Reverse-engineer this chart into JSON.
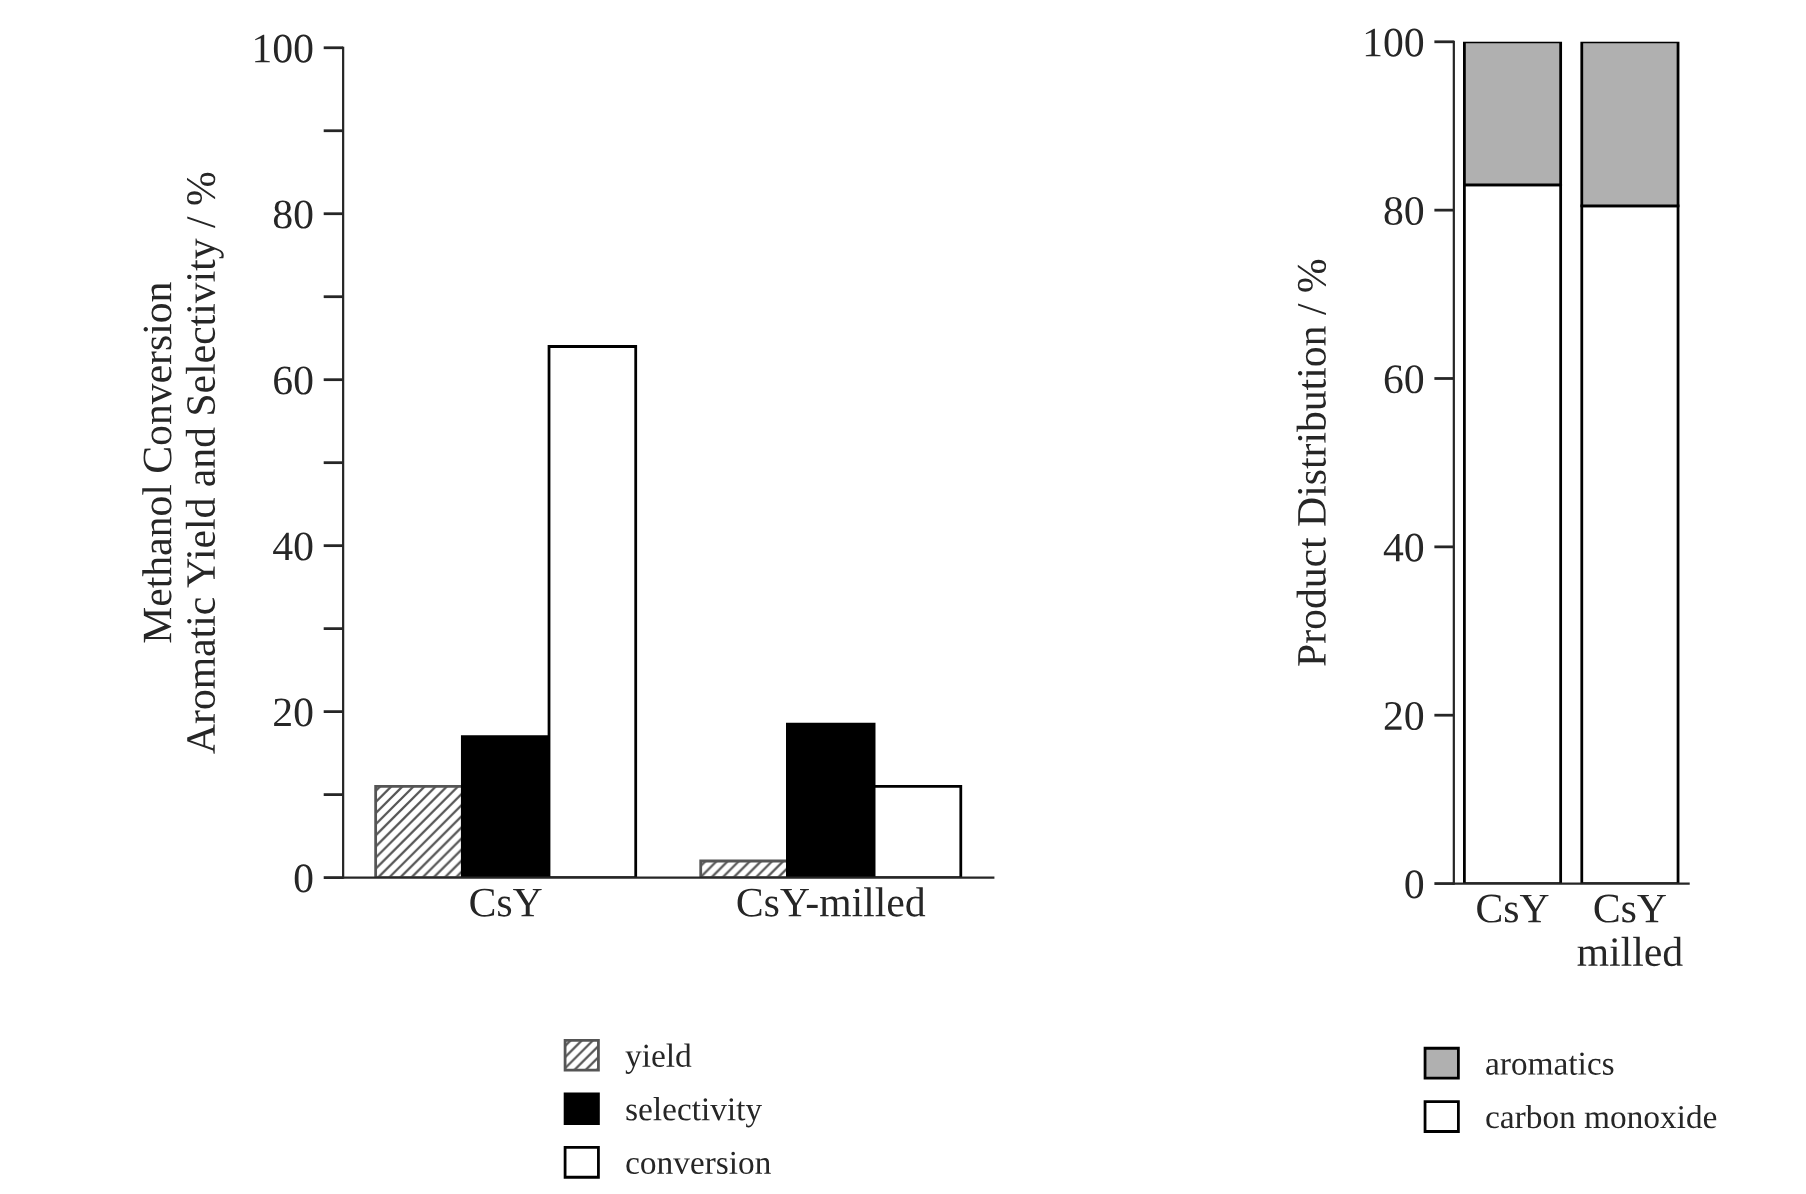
{
  "chart_data": [
    {
      "type": "bar",
      "ylabel": "Methanol Conversion\nAromatic Yield and Selectivity / %",
      "categories": [
        "CsY",
        "CsY-milled"
      ],
      "series": [
        {
          "name": "yield",
          "color": "#555555",
          "values": [
            11,
            2
          ]
        },
        {
          "name": "selectivity",
          "color": "#000000",
          "values": [
            17,
            18.5
          ]
        },
        {
          "name": "conversion",
          "color": "#ffffff",
          "values": [
            64,
            11
          ]
        }
      ],
      "ylim": [
        0,
        100
      ],
      "yticks": [
        0,
        {
          "value": 10,
          "label": null
        },
        20,
        {
          "value": 30,
          "label": null
        },
        40,
        {
          "value": 50,
          "label": null
        },
        60,
        {
          "value": 70,
          "label": null
        },
        80,
        {
          "value": 90,
          "label": null
        },
        100
      ],
      "legend": "bottom"
    },
    {
      "type": "bar",
      "stacked": true,
      "ylabel": "Product Distribution / %",
      "categories": [
        "CsY",
        "CsY\nmilled"
      ],
      "series": [
        {
          "name": "carbon monoxide",
          "color": "#ffffff",
          "values": [
            83,
            80.5
          ]
        },
        {
          "name": "aromatics",
          "color": "#b0b0b0",
          "values": [
            17,
            19.5
          ]
        }
      ],
      "ylim": [
        0,
        100
      ],
      "yticks": [
        0,
        20,
        40,
        60,
        80,
        100
      ],
      "legend": "bottom"
    }
  ]
}
